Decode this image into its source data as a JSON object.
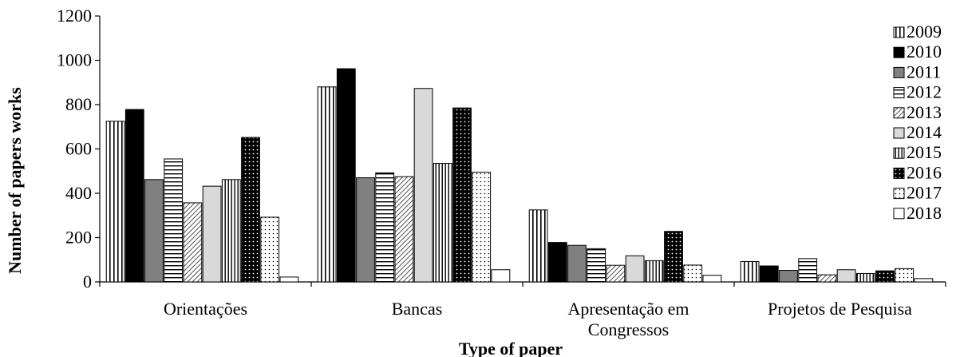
{
  "chart_data": {
    "type": "bar",
    "xlabel": "Type of paper",
    "ylabel": "Number of papers works",
    "ylim": [
      0,
      1200
    ],
    "yticks": [
      0,
      200,
      400,
      600,
      800,
      1000,
      1200
    ],
    "grid": false,
    "legend_position": "right",
    "categories": [
      [
        "Orientações"
      ],
      [
        "Bancas"
      ],
      [
        "Apresentação em",
        "Congressos"
      ],
      [
        "Projetos de Pesquisa"
      ]
    ],
    "series": [
      {
        "name": "2009",
        "values": [
          725,
          880,
          325,
          92
        ],
        "pattern": "vlines",
        "color": "#000000"
      },
      {
        "name": "2010",
        "values": [
          778,
          962,
          178,
          72
        ],
        "pattern": "solid",
        "color": "#000000"
      },
      {
        "name": "2011",
        "values": [
          462,
          470,
          165,
          52
        ],
        "pattern": "solid",
        "color": "#808080"
      },
      {
        "name": "2012",
        "values": [
          555,
          492,
          150,
          105
        ],
        "pattern": "hlines",
        "color": "#000000"
      },
      {
        "name": "2013",
        "values": [
          357,
          475,
          75,
          32
        ],
        "pattern": "diag",
        "color": "#000000"
      },
      {
        "name": "2014",
        "values": [
          432,
          873,
          118,
          55
        ],
        "pattern": "solid",
        "color": "#d9d9d9"
      },
      {
        "name": "2015",
        "values": [
          462,
          535,
          96,
          38
        ],
        "pattern": "vlines-dense",
        "color": "#000000"
      },
      {
        "name": "2016",
        "values": [
          652,
          785,
          228,
          50
        ],
        "pattern": "dots-dark",
        "color": "#000000"
      },
      {
        "name": "2017",
        "values": [
          292,
          495,
          76,
          60
        ],
        "pattern": "dots-light",
        "color": "#000000"
      },
      {
        "name": "2018",
        "values": [
          22,
          55,
          30,
          15
        ],
        "pattern": "solid",
        "color": "#ffffff"
      }
    ]
  }
}
